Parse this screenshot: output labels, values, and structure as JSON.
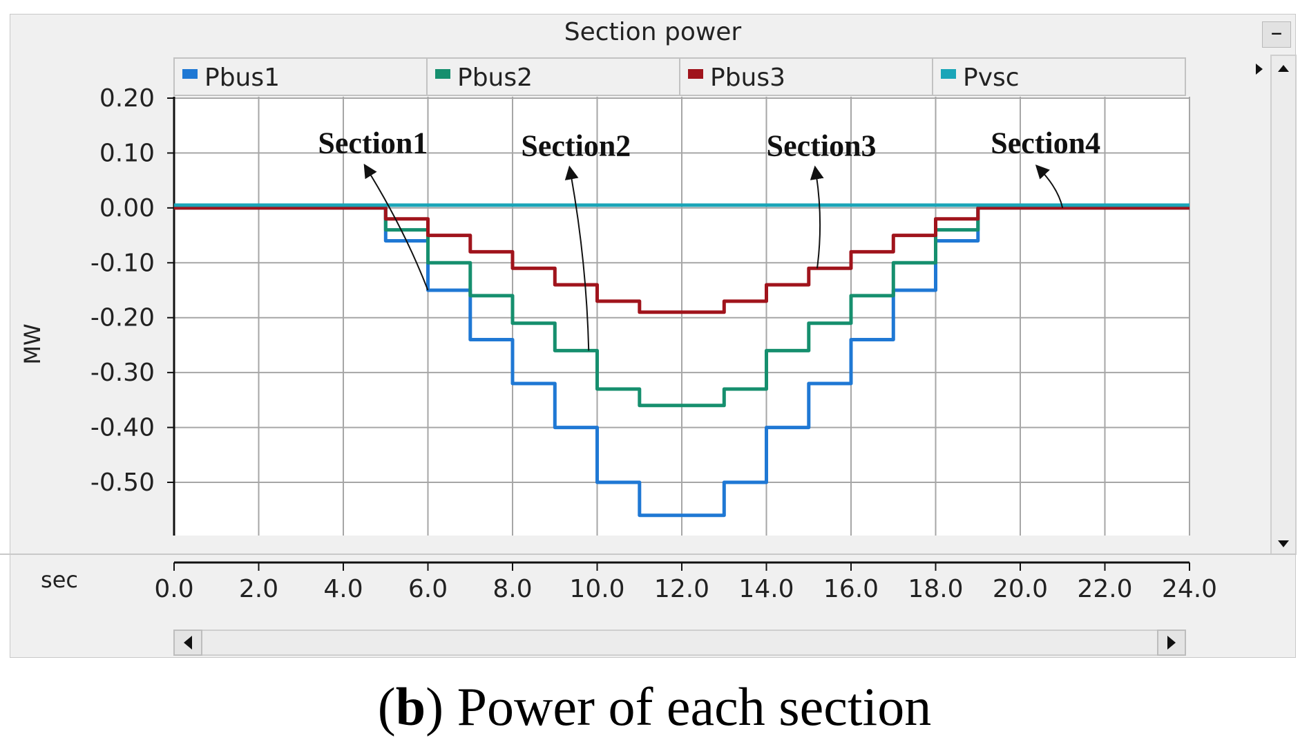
{
  "window": {
    "title": "Section power",
    "minimize_label": "–"
  },
  "caption": {
    "letter": "b",
    "open_paren": "(",
    "close_paren": ")",
    "text": "Power of each section"
  },
  "legend_items": [
    {
      "label": "Pbus1",
      "color": "#1f78d4"
    },
    {
      "label": "Pbus2",
      "color": "#168f6e"
    },
    {
      "label": "Pbus3",
      "color": "#a0141c"
    },
    {
      "label": "Pvsc",
      "color": "#1aa5b8"
    }
  ],
  "annotations": [
    {
      "label": "Section1",
      "x": 4.7,
      "y": 0.1,
      "target_x": 6.0,
      "target_y": -0.15
    },
    {
      "label": "Section2",
      "x": 9.5,
      "y": 0.095,
      "target_x": 9.8,
      "target_y": -0.26
    },
    {
      "label": "Section3",
      "x": 15.3,
      "y": 0.095,
      "target_x": 15.2,
      "target_y": -0.11
    },
    {
      "label": "Section4",
      "x": 20.6,
      "y": 0.1,
      "target_x": 21.0,
      "target_y": 0.0
    }
  ],
  "colors": {
    "grid": "#a6a6a6",
    "plot_bg": "#ffffff",
    "window_bg": "#f0f0f0"
  },
  "chart_data": {
    "type": "line",
    "title": "Section power",
    "xlabel": "sec",
    "ylabel": "MW",
    "xlim": [
      0,
      24
    ],
    "ylim": [
      -0.59,
      0.2
    ],
    "xticks": [
      0,
      2,
      4,
      6,
      8,
      10,
      12,
      14,
      16,
      18,
      20,
      22,
      24
    ],
    "xtick_labels": [
      "0.0",
      "2.0",
      "4.0",
      "6.0",
      "8.0",
      "10.0",
      "12.0",
      "14.0",
      "16.0",
      "18.0",
      "20.0",
      "22.0",
      "24.0"
    ],
    "yticks": [
      0.2,
      0.1,
      0.0,
      -0.1,
      -0.2,
      -0.3,
      -0.4,
      -0.5
    ],
    "ytick_labels": [
      "0.20",
      "0.10",
      "0.00",
      "-0.10",
      "-0.20",
      "-0.30",
      "-0.40",
      "-0.50"
    ],
    "grid": true,
    "legend_position": "top",
    "series": [
      {
        "name": "Pbus1",
        "color": "#1f78d4",
        "x": [
          0,
          5,
          5,
          6,
          6,
          7,
          7,
          8,
          8,
          9,
          9,
          10,
          10,
          11,
          11,
          13,
          13,
          14,
          14,
          15,
          15,
          16,
          16,
          17,
          17,
          18,
          18,
          19,
          19,
          24
        ],
        "y": [
          0,
          0,
          -0.06,
          -0.06,
          -0.15,
          -0.15,
          -0.24,
          -0.24,
          -0.32,
          -0.32,
          -0.4,
          -0.4,
          -0.5,
          -0.5,
          -0.56,
          -0.56,
          -0.5,
          -0.5,
          -0.4,
          -0.4,
          -0.32,
          -0.32,
          -0.24,
          -0.24,
          -0.15,
          -0.15,
          -0.06,
          -0.06,
          0,
          0
        ]
      },
      {
        "name": "Pbus2",
        "color": "#168f6e",
        "x": [
          0,
          5,
          5,
          6,
          6,
          7,
          7,
          8,
          8,
          9,
          9,
          10,
          10,
          11,
          11,
          13,
          13,
          14,
          14,
          15,
          15,
          16,
          16,
          17,
          17,
          18,
          18,
          19,
          19,
          24
        ],
        "y": [
          0,
          0,
          -0.04,
          -0.04,
          -0.1,
          -0.1,
          -0.16,
          -0.16,
          -0.21,
          -0.21,
          -0.26,
          -0.26,
          -0.33,
          -0.33,
          -0.36,
          -0.36,
          -0.33,
          -0.33,
          -0.26,
          -0.26,
          -0.21,
          -0.21,
          -0.16,
          -0.16,
          -0.1,
          -0.1,
          -0.04,
          -0.04,
          0,
          0
        ]
      },
      {
        "name": "Pbus3",
        "color": "#a0141c",
        "x": [
          0,
          5,
          5,
          6,
          6,
          7,
          7,
          8,
          8,
          9,
          9,
          10,
          10,
          11,
          11,
          13,
          13,
          14,
          14,
          15,
          15,
          16,
          16,
          17,
          17,
          18,
          18,
          19,
          19,
          24
        ],
        "y": [
          0,
          0,
          -0.02,
          -0.02,
          -0.05,
          -0.05,
          -0.08,
          -0.08,
          -0.11,
          -0.11,
          -0.14,
          -0.14,
          -0.17,
          -0.17,
          -0.19,
          -0.19,
          -0.17,
          -0.17,
          -0.14,
          -0.14,
          -0.11,
          -0.11,
          -0.08,
          -0.08,
          -0.05,
          -0.05,
          -0.02,
          -0.02,
          0,
          0
        ]
      },
      {
        "name": "Pvsc",
        "color": "#1aa5b8",
        "x": [
          0,
          24
        ],
        "y": [
          0.005,
          0.005
        ]
      }
    ]
  }
}
